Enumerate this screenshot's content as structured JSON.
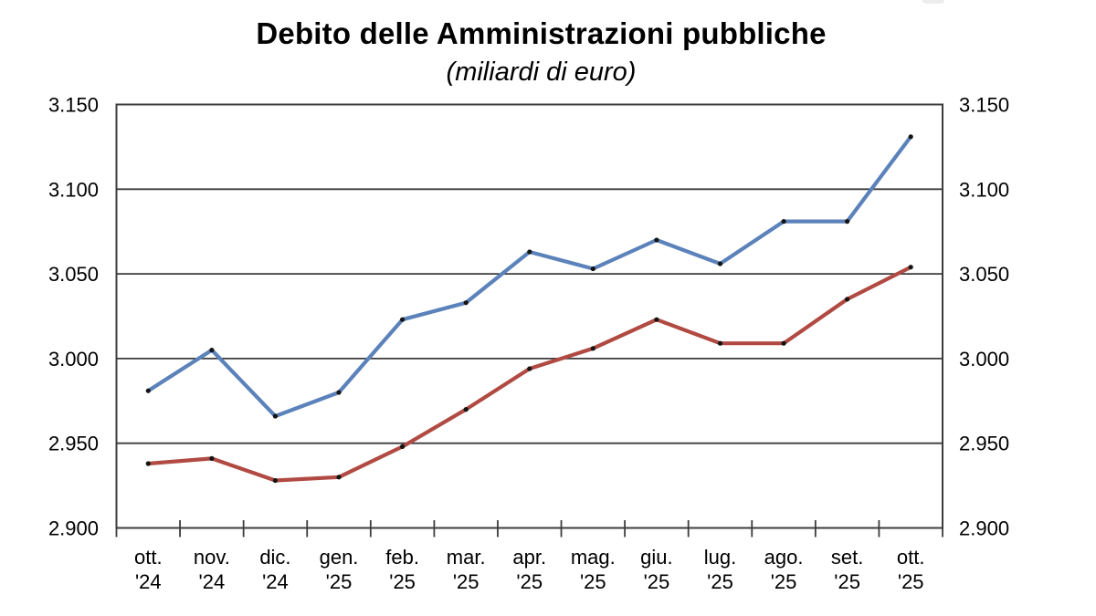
{
  "header": {
    "title": "Debito delle Amministrazioni pubbliche",
    "subtitle": "(miliardi di euro)"
  },
  "chart_data": {
    "type": "line",
    "title": "Debito delle Amministrazioni pubbliche",
    "subtitle": "(miliardi di euro)",
    "unit": "miliardi di euro",
    "grid": true,
    "legend_position": "none",
    "ylim": [
      2900,
      3150
    ],
    "y_ticks": [
      2900,
      2950,
      3000,
      3050,
      3100,
      3150
    ],
    "y_tick_labels": [
      "2.900",
      "2.950",
      "3.000",
      "3.050",
      "3.100",
      "3.150"
    ],
    "y_axis_sides": [
      "left",
      "right"
    ],
    "categories": [
      "ott. '24",
      "nov. '24",
      "dic. '24",
      "gen. '25",
      "feb. '25",
      "mar. '25",
      "apr. '25",
      "mag. '25",
      "giu. '25",
      "lug. '25",
      "ago. '25",
      "set. '25",
      "ott. '25"
    ],
    "category_labels_two_line": [
      [
        "ott.",
        "'24"
      ],
      [
        "nov.",
        "'24"
      ],
      [
        "dic.",
        "'24"
      ],
      [
        "gen.",
        "'25"
      ],
      [
        "feb.",
        "'25"
      ],
      [
        "mar.",
        "'25"
      ],
      [
        "apr.",
        "'25"
      ],
      [
        "mag.",
        "'25"
      ],
      [
        "giu.",
        "'25"
      ],
      [
        "lug.",
        "'25"
      ],
      [
        "ago.",
        "'25"
      ],
      [
        "set.",
        "'25"
      ],
      [
        "ott.",
        "'25"
      ]
    ],
    "series": [
      {
        "name": "blue",
        "color": "#5b82ba",
        "marker_color": "#141414",
        "values": [
          2981,
          3005,
          2966,
          2980,
          3023,
          3033,
          3063,
          3053,
          3070,
          3056,
          3081,
          3081,
          3131
        ]
      },
      {
        "name": "red",
        "color": "#b04a42",
        "marker_color": "#141414",
        "values": [
          2938,
          2941,
          2928,
          2930,
          2948,
          2970,
          2994,
          3006,
          3023,
          3009,
          3009,
          3035,
          3054
        ]
      }
    ],
    "axis_color": "#3c3c3c",
    "text_color": "#000000",
    "background": "#ffffff"
  }
}
